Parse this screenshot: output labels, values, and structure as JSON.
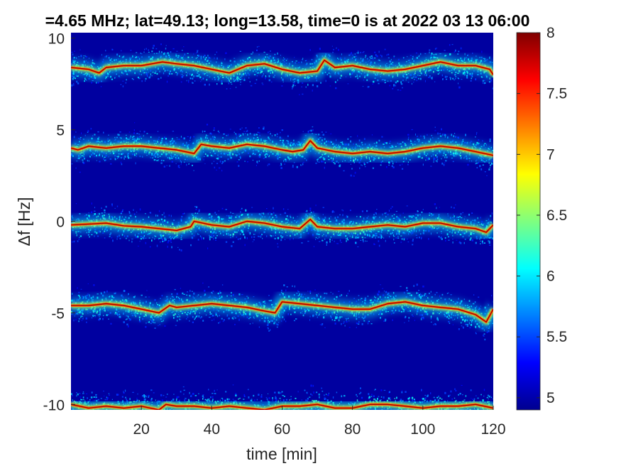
{
  "chart_data": {
    "type": "heatmap",
    "title": "=4.65 MHz;  lat=49.13; long=13.58, time=0 is at 2022 03 13 06:00",
    "xlabel": "time [min]",
    "ylabel": "Δf [Hz]",
    "xlim": [
      0,
      120
    ],
    "ylim": [
      -10.3,
      10.3
    ],
    "xticks": [
      20,
      40,
      60,
      80,
      100,
      120
    ],
    "yticks": [
      -10,
      -5,
      0,
      5,
      10
    ],
    "colorbar": {
      "colormap": "jet",
      "clim": [
        4.9,
        8
      ],
      "ticks": [
        5,
        5.5,
        6,
        6.5,
        7,
        7.5,
        8
      ]
    },
    "background_value": 5.0,
    "traces": [
      {
        "x": [
          0,
          5,
          8,
          10,
          15,
          20,
          26,
          30,
          35,
          40,
          45,
          50,
          55,
          60,
          65,
          70,
          72,
          75,
          80,
          85,
          90,
          95,
          100,
          105,
          110,
          115,
          119,
          120
        ],
        "y": [
          8.4,
          8.3,
          8.1,
          8.4,
          8.5,
          8.5,
          8.7,
          8.6,
          8.5,
          8.3,
          8.1,
          8.5,
          8.6,
          8.3,
          8.1,
          8.2,
          8.8,
          8.4,
          8.5,
          8.3,
          8.2,
          8.3,
          8.5,
          8.7,
          8.5,
          8.5,
          8.3,
          8.0
        ]
      },
      {
        "x": [
          0,
          2,
          5,
          10,
          15,
          20,
          25,
          30,
          35,
          37,
          40,
          45,
          50,
          55,
          60,
          63,
          66,
          68,
          70,
          75,
          80,
          85,
          90,
          95,
          100,
          105,
          110,
          115,
          120
        ],
        "y": [
          4.0,
          3.9,
          4.1,
          4.0,
          4.1,
          4.1,
          4.0,
          3.9,
          3.7,
          4.2,
          4.1,
          4.0,
          4.2,
          4.1,
          3.9,
          3.8,
          3.9,
          4.4,
          4.0,
          3.8,
          3.7,
          3.8,
          3.7,
          3.8,
          4.0,
          4.1,
          4.0,
          3.8,
          3.6
        ]
      },
      {
        "x": [
          0,
          5,
          10,
          15,
          20,
          25,
          30,
          34,
          35,
          40,
          45,
          50,
          55,
          60,
          65,
          68,
          70,
          75,
          80,
          85,
          90,
          95,
          100,
          105,
          110,
          115,
          118,
          120
        ],
        "y": [
          -0.2,
          -0.15,
          -0.1,
          -0.25,
          -0.3,
          -0.4,
          -0.5,
          -0.3,
          0.0,
          -0.2,
          -0.3,
          0.0,
          -0.1,
          -0.3,
          -0.4,
          0.1,
          -0.3,
          -0.4,
          -0.4,
          -0.3,
          -0.2,
          -0.3,
          -0.1,
          -0.1,
          -0.3,
          -0.4,
          -0.6,
          -0.2
        ]
      },
      {
        "x": [
          0,
          5,
          10,
          15,
          20,
          25,
          28,
          30,
          35,
          40,
          45,
          50,
          55,
          58,
          60,
          65,
          70,
          75,
          80,
          85,
          90,
          95,
          100,
          105,
          110,
          115,
          118,
          120
        ],
        "y": [
          -4.6,
          -4.6,
          -4.5,
          -4.6,
          -4.8,
          -5.0,
          -4.6,
          -4.7,
          -4.6,
          -4.5,
          -4.6,
          -4.7,
          -4.9,
          -5.0,
          -4.4,
          -4.5,
          -4.6,
          -4.7,
          -4.8,
          -4.8,
          -4.5,
          -4.4,
          -4.6,
          -4.7,
          -4.8,
          -5.1,
          -5.5,
          -4.8
        ]
      },
      {
        "x": [
          0,
          5,
          10,
          15,
          20,
          25,
          27,
          30,
          35,
          40,
          45,
          50,
          55,
          60,
          65,
          70,
          75,
          80,
          85,
          90,
          95,
          100,
          105,
          110,
          115,
          120
        ],
        "y": [
          -10.0,
          -10.2,
          -10.1,
          -10.2,
          -10.1,
          -10.3,
          -10.0,
          -10.1,
          -10.1,
          -10.2,
          -10.1,
          -10.2,
          -10.3,
          -10.1,
          -10.1,
          -10.0,
          -10.2,
          -10.2,
          -10.0,
          -10.0,
          -10.1,
          -10.2,
          -10.1,
          -10.1,
          -10.0,
          -10.2
        ]
      }
    ]
  }
}
